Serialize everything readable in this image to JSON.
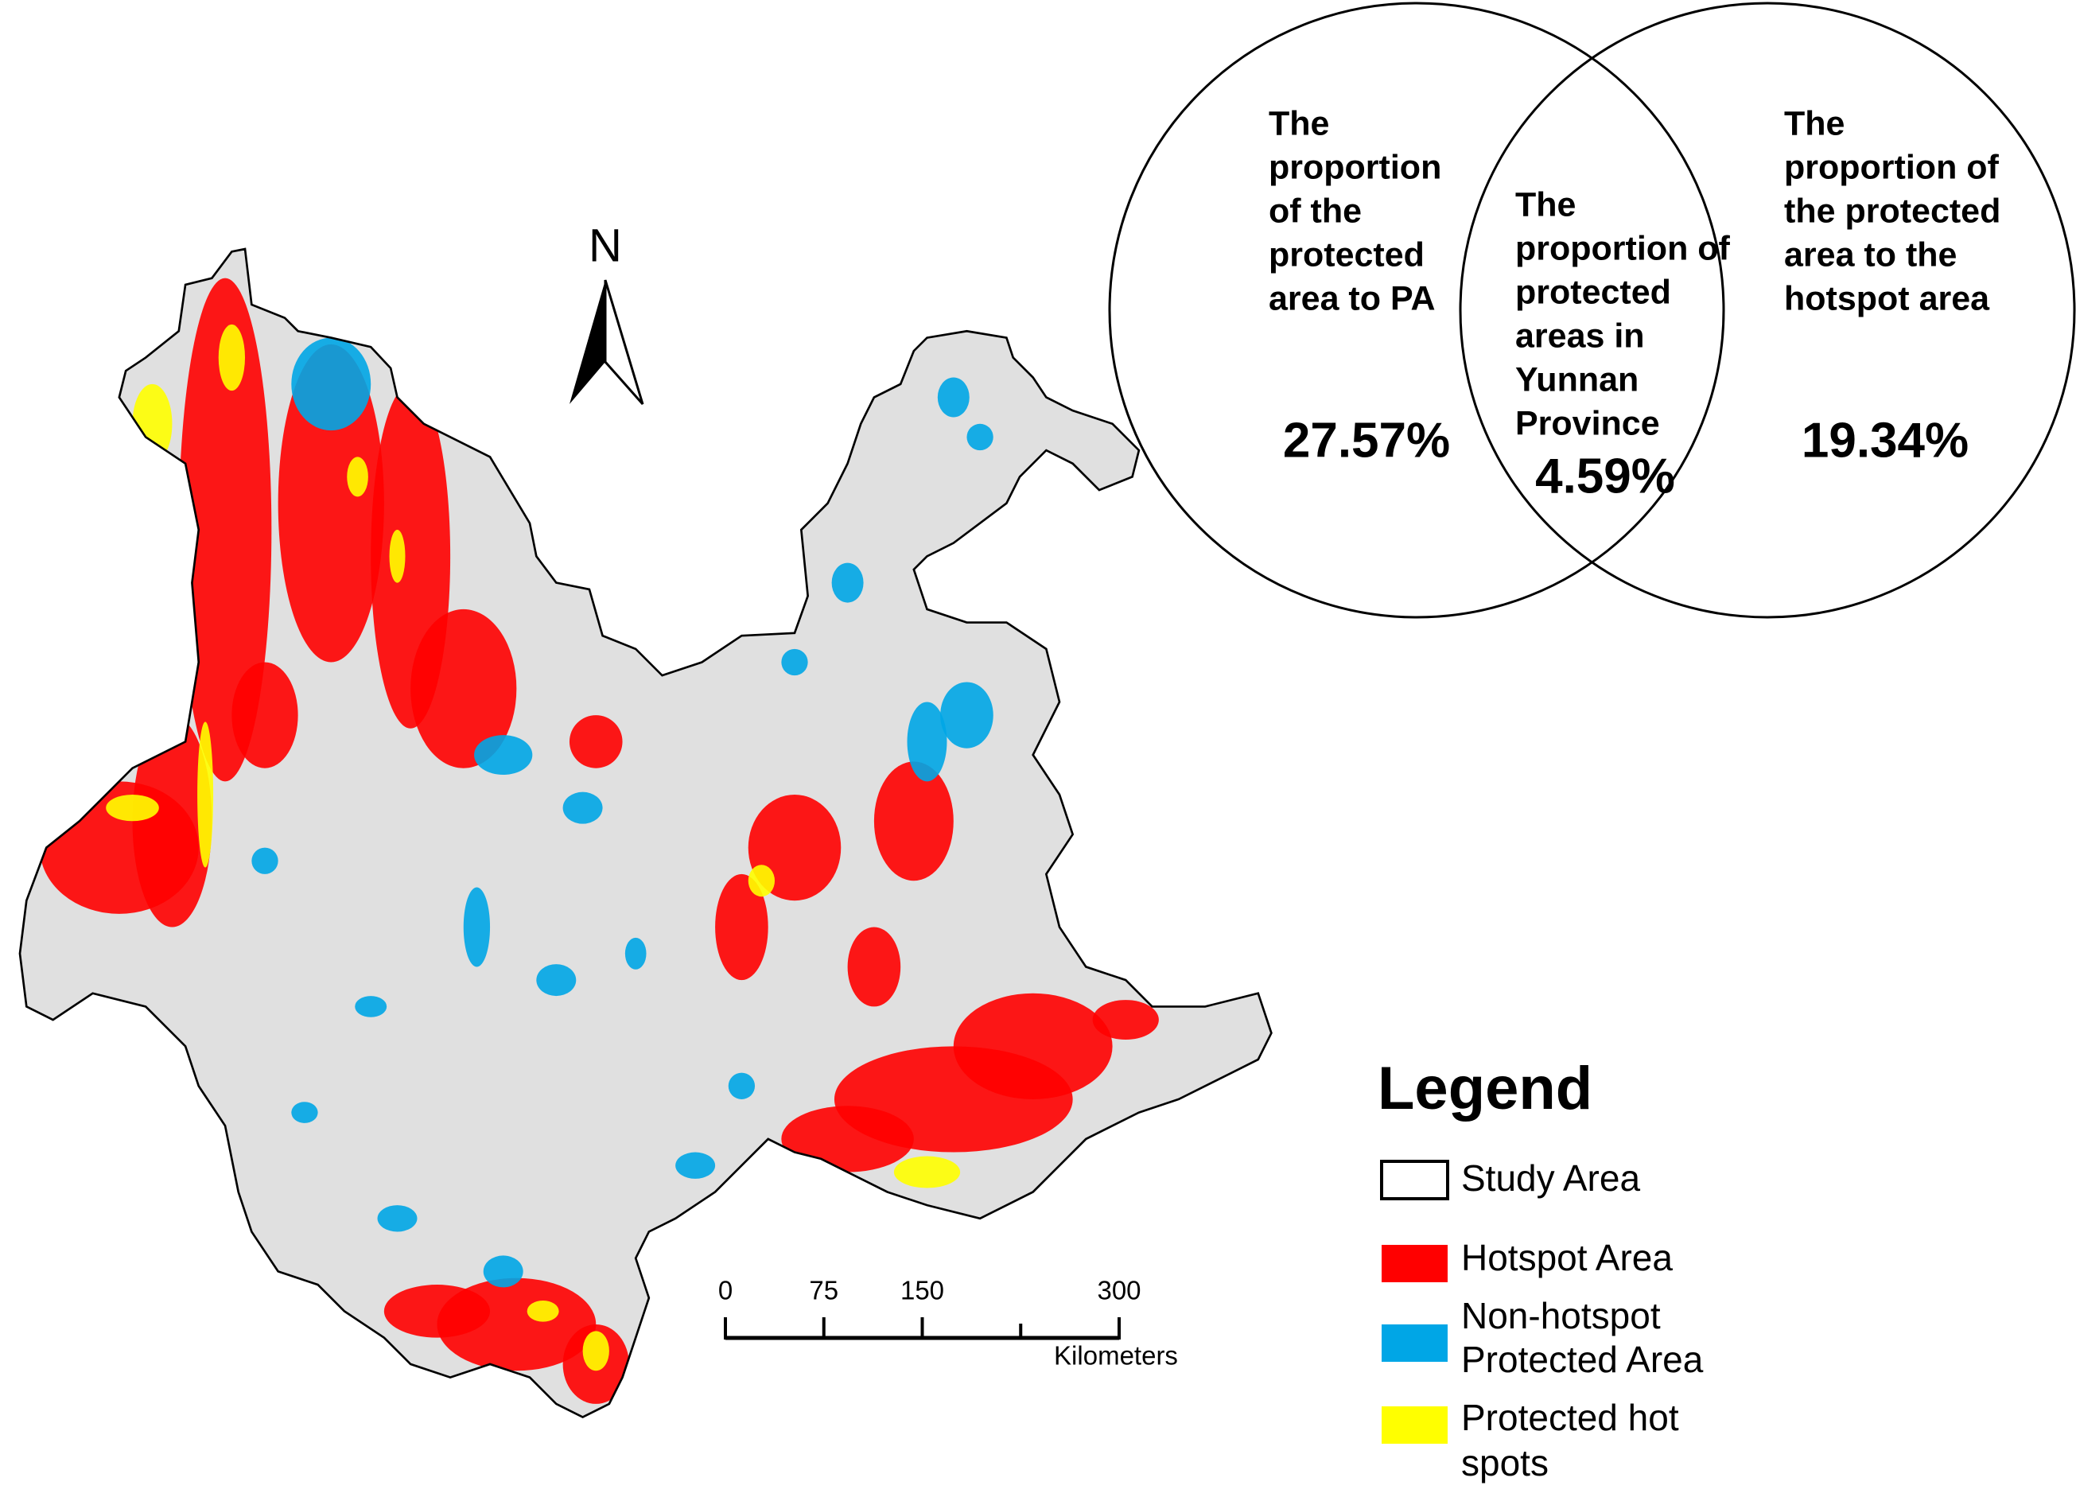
{
  "north_arrow": "N",
  "venn": {
    "left": {
      "label_lines": [
        "The",
        "proportion",
        "of the",
        "protected",
        "area to PA"
      ],
      "value": "27.57%"
    },
    "center": {
      "label_lines": [
        "The",
        "proportion of",
        "protected",
        "areas in",
        "Yunnan",
        "Province"
      ],
      "value": "4.59%"
    },
    "right": {
      "label_lines": [
        "The",
        "proportion of",
        "the protected",
        "area to the",
        "hotspot area"
      ],
      "value": "19.34%"
    }
  },
  "scale_bar": {
    "ticks": [
      0,
      75,
      150,
      300
    ],
    "unit": "Kilometers"
  },
  "legend": {
    "title": "Legend",
    "items": [
      {
        "label_lines": [
          "Study Area"
        ],
        "color": "#ffffff"
      },
      {
        "label_lines": [
          "Hotspot Area"
        ],
        "color": "#ff0000"
      },
      {
        "label_lines": [
          "Non-hotspot",
          "Protected Area"
        ],
        "color": "#00a6e6"
      },
      {
        "label_lines": [
          "Protected hot",
          "spots"
        ],
        "color": "#ffff00"
      }
    ]
  }
}
